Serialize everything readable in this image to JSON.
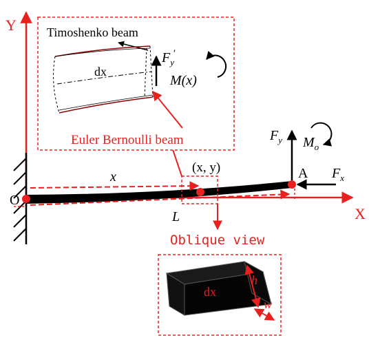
{
  "colors": {
    "axis": "#e8201e",
    "beam": "#000000",
    "inset_border": "#e8201e",
    "text_black": "#000000",
    "text_red": "#e8201e"
  },
  "axes": {
    "y_label": "Y",
    "x_label": "X",
    "origin_label": "O"
  },
  "inset_beam": {
    "timoshenko_label": "Timoshenko beam",
    "euler_label": "Euler Bernoulli beam",
    "dx_label": "dx",
    "shear_force_label": "F",
    "shear_force_sub": "y",
    "shear_force_prime": "′",
    "moment_label": "M(x)"
  },
  "main_beam": {
    "x_label": "x",
    "point_label": "(x, y)",
    "length_label": "L",
    "tip_label": "A",
    "fy_label": "F",
    "fy_sub": "y",
    "fx_label": "F",
    "fx_sub": "x",
    "mo_label": "M",
    "mo_sub": "o",
    "oblique_label": "Oblique view"
  },
  "oblique_view": {
    "dx_label": "dx",
    "h_label": "h",
    "w_label": "w"
  }
}
